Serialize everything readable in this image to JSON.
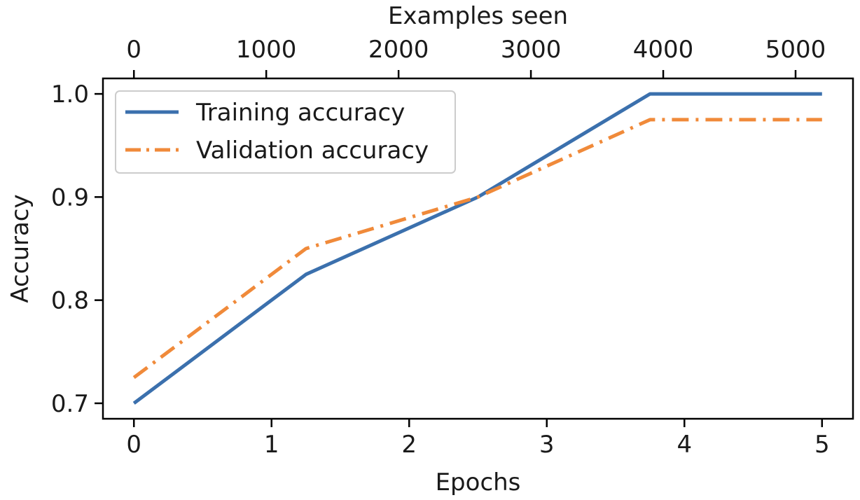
{
  "chart_data": {
    "type": "line",
    "xlabel": "Epochs",
    "ylabel": "Accuracy",
    "secondary_xlabel": "Examples seen",
    "xlim": [
      0,
      5
    ],
    "ylim": [
      0.7,
      1.0
    ],
    "secondary_xlim": [
      0,
      5200
    ],
    "x_ticks": [
      "0",
      "1",
      "2",
      "3",
      "4",
      "5"
    ],
    "y_ticks": [
      "0.7",
      "0.8",
      "0.9",
      "1.0"
    ],
    "secondary_x_ticks": [
      "0",
      "1000",
      "2000",
      "3000",
      "4000",
      "5000"
    ],
    "legend_position": "top-left",
    "grid": false,
    "series": [
      {
        "name": "Training accuracy",
        "color": "#3b70ad",
        "style": "solid",
        "x": [
          0,
          1.25,
          2.5,
          3.75,
          5
        ],
        "y": [
          0.7,
          0.825,
          0.9,
          1.0,
          1.0
        ]
      },
      {
        "name": "Validation accuracy",
        "color": "#f08a3a",
        "style": "dashdot",
        "x": [
          0,
          1.25,
          2.5,
          3.75,
          5
        ],
        "y": [
          0.725,
          0.85,
          0.9,
          0.975,
          0.975
        ]
      }
    ]
  }
}
